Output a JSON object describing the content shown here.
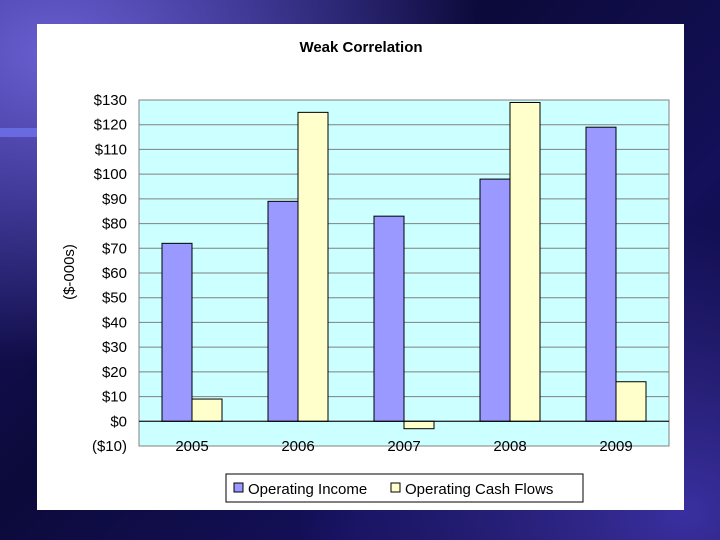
{
  "chart_data": {
    "type": "bar",
    "title": "Weak Correlation",
    "xlabel": "",
    "ylabel": "($-000s)",
    "categories": [
      "2005",
      "2006",
      "2007",
      "2008",
      "2009"
    ],
    "series": [
      {
        "name": "Operating Income",
        "values": [
          72,
          89,
          83,
          98,
          119
        ],
        "color": "#9999ff"
      },
      {
        "name": "Operating Cash Flows",
        "values": [
          9,
          125,
          -3,
          129,
          16
        ],
        "color": "#ffffcc"
      }
    ],
    "ylim": [
      -10,
      130
    ],
    "yticks": [
      {
        "value": 130,
        "label": "$130"
      },
      {
        "value": 120,
        "label": "$120"
      },
      {
        "value": 110,
        "label": "$110"
      },
      {
        "value": 100,
        "label": "$100"
      },
      {
        "value": 90,
        "label": "$90"
      },
      {
        "value": 80,
        "label": "$80"
      },
      {
        "value": 70,
        "label": "$70"
      },
      {
        "value": 60,
        "label": "$60"
      },
      {
        "value": 50,
        "label": "$50"
      },
      {
        "value": 40,
        "label": "$40"
      },
      {
        "value": 30,
        "label": "$30"
      },
      {
        "value": 20,
        "label": "$20"
      },
      {
        "value": 10,
        "label": "$10"
      },
      {
        "value": 0,
        "label": "$0"
      },
      {
        "value": -10,
        "label": "($10)",
        "color": "#cc0000"
      }
    ],
    "grid": true,
    "plot_background": "#ccffff",
    "legend_position": "bottom"
  }
}
